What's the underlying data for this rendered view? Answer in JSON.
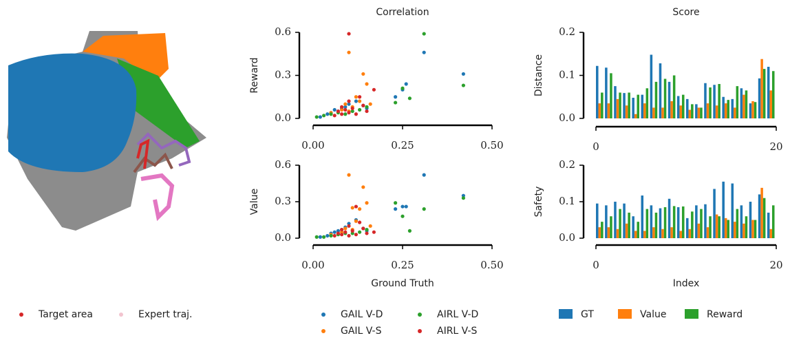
{
  "left_panel": {
    "legend": [
      "Target area",
      "Expert traj."
    ]
  },
  "chart_data": [
    {
      "type": "scatter",
      "title": "Correlation",
      "y_label": "Reward",
      "xlim": [
        0,
        0.5
      ],
      "ylim": [
        0,
        0.6
      ],
      "xticks": [
        {
          "value": 0,
          "label": "0.00"
        },
        0.25,
        {
          "value": 0.5,
          "label": "0.50"
        }
      ],
      "yticks": [
        {
          "value": 0,
          "label": "0.0"
        },
        0.3,
        0.6
      ],
      "series": [
        {
          "name": "GAIL V-D",
          "color": "#1f77b4",
          "x": [
            0.02,
            0.04,
            0.05,
            0.06,
            0.07,
            0.08,
            0.09,
            0.1,
            0.12,
            0.14,
            0.15,
            0.23,
            0.25,
            0.26,
            0.31,
            0.42
          ],
          "values": [
            0.01,
            0.03,
            0.04,
            0.06,
            0.05,
            0.07,
            0.08,
            0.1,
            0.12,
            0.09,
            0.07,
            0.15,
            0.2,
            0.24,
            0.46,
            0.31
          ]
        },
        {
          "name": "GAIL V-S",
          "color": "#ff7f0e",
          "x": [
            0.05,
            0.08,
            0.09,
            0.1,
            0.1,
            0.11,
            0.12,
            0.13,
            0.14,
            0.15,
            0.16
          ],
          "values": [
            0.04,
            0.06,
            0.1,
            0.46,
            0.05,
            0.08,
            0.15,
            0.12,
            0.31,
            0.24,
            0.1
          ]
        },
        {
          "name": "AIRL V-D",
          "color": "#2ca02c",
          "x": [
            0.01,
            0.03,
            0.05,
            0.07,
            0.09,
            0.11,
            0.13,
            0.15,
            0.23,
            0.25,
            0.27,
            0.31,
            0.42
          ],
          "values": [
            0.01,
            0.02,
            0.03,
            0.04,
            0.03,
            0.05,
            0.06,
            0.08,
            0.11,
            0.21,
            0.14,
            0.59,
            0.23
          ]
        },
        {
          "name": "AIRL V-S",
          "color": "#d62728",
          "x": [
            0.06,
            0.07,
            0.08,
            0.08,
            0.09,
            0.1,
            0.1,
            0.11,
            0.12,
            0.13,
            0.14,
            0.15,
            0.1,
            0.17
          ],
          "values": [
            0.02,
            0.05,
            0.03,
            0.08,
            0.06,
            0.04,
            0.12,
            0.07,
            0.03,
            0.15,
            0.09,
            0.05,
            0.59,
            0.2
          ]
        }
      ]
    },
    {
      "type": "scatter",
      "x_label": "Ground Truth",
      "y_label": "Value",
      "xlim": [
        0,
        0.5
      ],
      "ylim": [
        0,
        0.6
      ],
      "xticks": [
        {
          "value": 0,
          "label": "0.00"
        },
        0.25,
        {
          "value": 0.5,
          "label": "0.50"
        }
      ],
      "yticks": [
        {
          "value": 0,
          "label": "0.0"
        },
        0.3,
        0.6
      ],
      "series": [
        {
          "name": "GAIL V-D",
          "color": "#1f77b4",
          "x": [
            0.02,
            0.04,
            0.05,
            0.06,
            0.07,
            0.08,
            0.09,
            0.1,
            0.12,
            0.14,
            0.15,
            0.23,
            0.25,
            0.26,
            0.31,
            0.42
          ],
          "values": [
            0.01,
            0.02,
            0.04,
            0.05,
            0.06,
            0.07,
            0.09,
            0.12,
            0.15,
            0.08,
            0.06,
            0.24,
            0.26,
            0.26,
            0.52,
            0.35
          ]
        },
        {
          "name": "GAIL V-S",
          "color": "#ff7f0e",
          "x": [
            0.05,
            0.08,
            0.09,
            0.1,
            0.11,
            0.11,
            0.12,
            0.13,
            0.14,
            0.15,
            0.16
          ],
          "values": [
            0.03,
            0.05,
            0.08,
            0.52,
            0.25,
            0.07,
            0.14,
            0.24,
            0.42,
            0.29,
            0.1
          ]
        },
        {
          "name": "AIRL V-D",
          "color": "#2ca02c",
          "x": [
            0.01,
            0.03,
            0.05,
            0.07,
            0.09,
            0.11,
            0.13,
            0.15,
            0.23,
            0.25,
            0.27,
            0.31,
            0.42
          ],
          "values": [
            0.01,
            0.01,
            0.02,
            0.03,
            0.04,
            0.04,
            0.05,
            0.07,
            0.29,
            0.18,
            0.06,
            0.24,
            0.33
          ]
        },
        {
          "name": "AIRL V-S",
          "color": "#d62728",
          "x": [
            0.06,
            0.07,
            0.08,
            0.08,
            0.09,
            0.1,
            0.1,
            0.11,
            0.12,
            0.13,
            0.14,
            0.15,
            0.12,
            0.17
          ],
          "values": [
            0.02,
            0.04,
            0.03,
            0.07,
            0.05,
            0.02,
            0.1,
            0.06,
            0.03,
            0.13,
            0.08,
            0.04,
            0.26,
            0.05
          ]
        }
      ]
    },
    {
      "type": "bar",
      "title": "Score",
      "y_label": "Distance",
      "xlim": [
        0,
        20
      ],
      "ylim": [
        0,
        0.2
      ],
      "xticks": [
        0,
        20
      ],
      "yticks": [
        {
          "value": 0,
          "label": "0.0"
        },
        0.1,
        0.2
      ],
      "series": [
        {
          "name": "GT",
          "color": "#1f77b4",
          "values": [
            0.122,
            0.118,
            0.075,
            0.059,
            0.048,
            0.055,
            0.148,
            0.128,
            0.085,
            0.052,
            0.045,
            0.033,
            0.082,
            0.078,
            0.05,
            0.045,
            0.07,
            0.035,
            0.093,
            0.12
          ]
        },
        {
          "name": "Value",
          "color": "#ff7f0e",
          "values": [
            0.035,
            0.035,
            0.045,
            0.03,
            0.01,
            0.035,
            0.025,
            0.025,
            0.04,
            0.03,
            0.02,
            0.025,
            0.035,
            0.03,
            0.035,
            0.025,
            0.055,
            0.04,
            0.138,
            0.065
          ]
        },
        {
          "name": "Reward",
          "color": "#2ca02c",
          "values": [
            0.06,
            0.105,
            0.06,
            0.06,
            0.055,
            0.07,
            0.085,
            0.092,
            0.1,
            0.055,
            0.033,
            0.025,
            0.072,
            0.08,
            0.043,
            0.075,
            0.065,
            0.038,
            0.115,
            0.11
          ]
        }
      ]
    },
    {
      "type": "bar",
      "x_label": "Index",
      "y_label": "Safety",
      "xlim": [
        0,
        20
      ],
      "ylim": [
        0,
        0.2
      ],
      "xticks": [
        0,
        20
      ],
      "yticks": [
        {
          "value": 0,
          "label": "0.0"
        },
        0.1,
        0.2
      ],
      "series": [
        {
          "name": "GT",
          "color": "#1f77b4",
          "values": [
            0.095,
            0.09,
            0.1,
            0.095,
            0.06,
            0.117,
            0.09,
            0.082,
            0.108,
            0.085,
            0.055,
            0.09,
            0.093,
            0.135,
            0.155,
            0.15,
            0.09,
            0.1,
            0.12,
            0.07
          ]
        },
        {
          "name": "Value",
          "color": "#ff7f0e",
          "values": [
            0.03,
            0.03,
            0.025,
            0.04,
            0.02,
            0.02,
            0.03,
            0.025,
            0.03,
            0.02,
            0.025,
            0.04,
            0.03,
            0.065,
            0.055,
            0.045,
            0.04,
            0.05,
            0.138,
            0.025
          ]
        },
        {
          "name": "Reward",
          "color": "#2ca02c",
          "values": [
            0.045,
            0.06,
            0.08,
            0.07,
            0.045,
            0.08,
            0.07,
            0.085,
            0.088,
            0.087,
            0.073,
            0.08,
            0.06,
            0.06,
            0.05,
            0.08,
            0.06,
            0.05,
            0.11,
            0.09
          ]
        }
      ]
    }
  ]
}
